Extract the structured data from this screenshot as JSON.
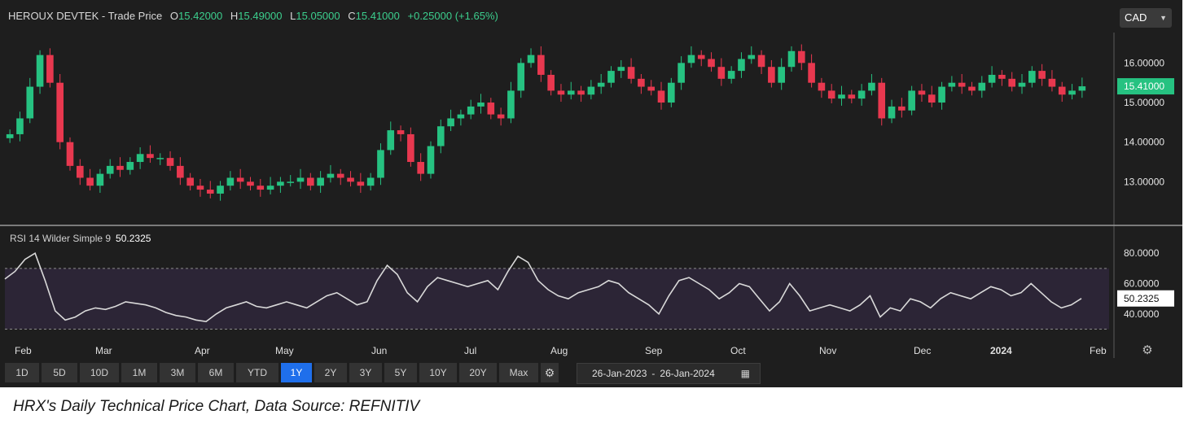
{
  "header": {
    "instrument": "HEROUX DEVTEK",
    "price_type": "- Trade Price",
    "open_label": "O",
    "open": "15.42000",
    "high_label": "H",
    "high": "15.49000",
    "low_label": "L",
    "low": "15.05000",
    "close_label": "C",
    "close": "15.41000",
    "change": "+0.25000",
    "change_pct": "(+1.65%)"
  },
  "currency": {
    "selected": "CAD",
    "chevron_icon": "chevron-down-icon"
  },
  "rsi_header": {
    "label": "RSI 14 Wilder Simple 9",
    "value": "50.2325"
  },
  "toolbar": {
    "ranges": [
      "1D",
      "5D",
      "10D",
      "1M",
      "3M",
      "6M",
      "YTD",
      "1Y",
      "2Y",
      "3Y",
      "5Y",
      "10Y",
      "20Y",
      "Max"
    ],
    "active": "1Y",
    "gear_icon": "gear-icon"
  },
  "date_range": {
    "from": "26-Jan-2023",
    "separator": "-",
    "to": "26-Jan-2024",
    "calendar_icon": "calendar-icon"
  },
  "settings_icon": "settings-icon",
  "caption": "HRX's Daily Technical Price Chart, Data Source: REFNITIV",
  "colors": {
    "up": "#26c281",
    "down": "#e8384f",
    "background": "#1e1e1e",
    "rsi_band": "#2c2536",
    "rsi_line": "#d9d9d9"
  },
  "chart_data": [
    {
      "type": "candlestick",
      "y_ticks": [
        "16.00000",
        "15.00000",
        "14.00000",
        "13.00000"
      ],
      "y_tick_values": [
        16,
        15,
        14,
        13
      ],
      "ylim": [
        12.0,
        16.85
      ],
      "x_ticks": [
        "Feb",
        "Mar",
        "Apr",
        "May",
        "Jun",
        "Jul",
        "Aug",
        "Sep",
        "Oct",
        "Nov",
        "Dec",
        "2024",
        "Feb"
      ],
      "last_price_label": "15.41000",
      "last_price": 15.41,
      "closes": [
        14.2,
        14.6,
        15.4,
        16.2,
        15.5,
        14.0,
        13.4,
        13.1,
        12.9,
        13.2,
        13.4,
        13.3,
        13.5,
        13.7,
        13.6,
        13.6,
        13.4,
        13.1,
        12.9,
        12.8,
        12.7,
        12.9,
        13.1,
        13.0,
        12.9,
        12.8,
        12.9,
        13.0,
        13.0,
        13.1,
        12.9,
        13.1,
        13.2,
        13.1,
        13.0,
        12.9,
        13.1,
        13.8,
        14.3,
        14.2,
        13.5,
        13.2,
        13.9,
        14.4,
        14.6,
        14.7,
        14.9,
        15.0,
        14.7,
        14.6,
        15.3,
        16.0,
        16.2,
        15.7,
        15.3,
        15.2,
        15.3,
        15.2,
        15.4,
        15.5,
        15.8,
        15.9,
        15.6,
        15.4,
        15.3,
        15.0,
        15.5,
        16.0,
        16.2,
        16.1,
        15.9,
        15.6,
        15.8,
        16.1,
        16.2,
        15.9,
        15.5,
        15.9,
        16.3,
        16.0,
        15.5,
        15.3,
        15.1,
        15.2,
        15.1,
        15.3,
        15.5,
        14.6,
        14.9,
        14.8,
        15.3,
        15.2,
        15.0,
        15.4,
        15.5,
        15.4,
        15.3,
        15.5,
        15.7,
        15.6,
        15.4,
        15.5,
        15.8,
        15.6,
        15.4,
        15.2,
        15.3,
        15.41
      ]
    },
    {
      "type": "line",
      "series_label": "RSI 14 Wilder Simple 9",
      "y_ticks": [
        "80.0000",
        "60.0000",
        "40.0000"
      ],
      "y_tick_values": [
        80,
        60,
        40
      ],
      "ylim": [
        26,
        86
      ],
      "band": [
        30,
        70
      ],
      "last_value_label": "50.2325",
      "values": [
        63,
        68,
        76,
        80,
        62,
        42,
        36,
        38,
        42,
        44,
        43,
        45,
        48,
        47,
        46,
        44,
        41,
        39,
        38,
        36,
        35,
        40,
        44,
        46,
        48,
        45,
        44,
        46,
        48,
        46,
        44,
        48,
        52,
        54,
        50,
        46,
        48,
        62,
        72,
        66,
        54,
        48,
        58,
        64,
        62,
        60,
        58,
        60,
        62,
        56,
        68,
        78,
        74,
        62,
        56,
        52,
        50,
        54,
        56,
        58,
        62,
        60,
        54,
        50,
        46,
        40,
        52,
        62,
        64,
        60,
        56,
        50,
        54,
        60,
        58,
        50,
        42,
        48,
        60,
        52,
        42,
        44,
        46,
        44,
        42,
        46,
        52,
        38,
        44,
        42,
        50,
        48,
        44,
        50,
        54,
        52,
        50,
        54,
        58,
        56,
        52,
        54,
        60,
        54,
        48,
        44,
        46,
        50.2325
      ]
    }
  ]
}
